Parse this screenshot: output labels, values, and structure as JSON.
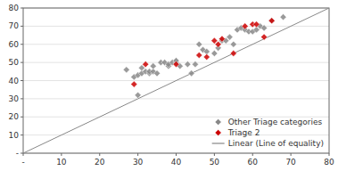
{
  "chart_data": {
    "type": "scatter",
    "xlim": [
      0,
      80
    ],
    "ylim": [
      0,
      80
    ],
    "xticks": [
      {
        "value": 0,
        "label": "-"
      },
      10,
      20,
      30,
      40,
      50,
      60,
      70,
      80
    ],
    "yticks": [
      {
        "value": 0,
        "label": "-"
      },
      10,
      20,
      30,
      40,
      50,
      60,
      70,
      80
    ],
    "grid": "y",
    "legend": "lower right",
    "series": [
      {
        "name": "Other Triage categories",
        "type": "scatter",
        "marker": "diamond",
        "color": "#888888",
        "x": [
          27,
          29,
          30,
          30,
          31,
          31,
          32,
          33,
          33,
          34,
          34,
          35,
          36,
          37,
          38,
          38,
          39,
          40,
          40,
          41,
          43,
          44,
          45,
          46,
          47,
          48,
          50,
          51,
          52,
          53,
          54,
          55,
          56,
          57,
          58,
          59,
          60,
          61,
          62,
          63,
          65,
          68
        ],
        "values": [
          46,
          42,
          32,
          43,
          47,
          44,
          45,
          44,
          45,
          45,
          48,
          44,
          50,
          50,
          48,
          49,
          50,
          50,
          51,
          48,
          49,
          44,
          49,
          60,
          57,
          56,
          55,
          58,
          62,
          62,
          64,
          60,
          68,
          69,
          68,
          67,
          67,
          68,
          70,
          69,
          73,
          75
        ]
      },
      {
        "name": "Triage 2",
        "type": "scatter",
        "marker": "diamond",
        "color": "#cc0000",
        "x": [
          29,
          32,
          40,
          46,
          48,
          50,
          51,
          52,
          55,
          58,
          60,
          61,
          63,
          65
        ],
        "values": [
          38,
          49,
          49,
          54,
          53,
          62,
          60,
          63,
          55,
          70,
          71,
          71,
          64,
          73
        ]
      },
      {
        "name": "Linear (Line of equality)",
        "type": "line",
        "line_style": "solid",
        "color": "#888888",
        "x": [
          0,
          80
        ],
        "values": [
          0,
          80
        ]
      }
    ]
  }
}
